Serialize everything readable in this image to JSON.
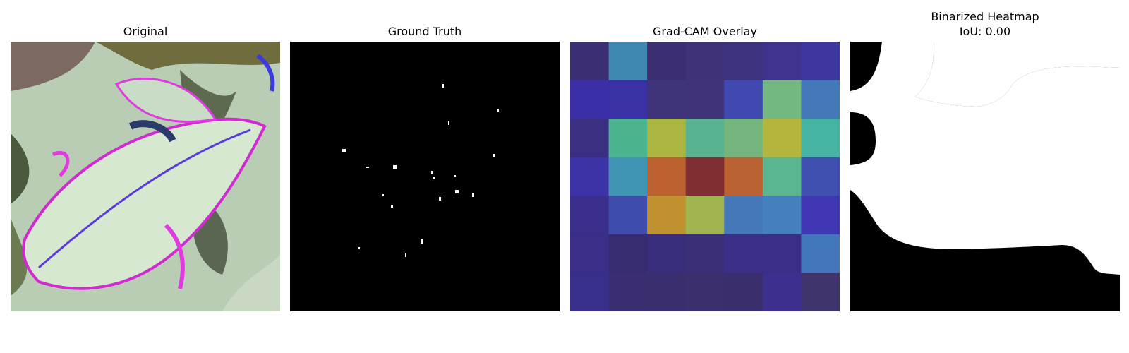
{
  "panels": [
    {
      "title": "Original"
    },
    {
      "title": "Ground Truth"
    },
    {
      "title": "Grad-CAM Overlay"
    },
    {
      "title": "Binarized Heatmap",
      "subtitle": "IoU: 0.00"
    }
  ],
  "gradcam": {
    "grid_size": 7,
    "cells": [
      [
        "#3b2e72",
        "#3f88b2",
        "#3b2f72",
        "#403278",
        "#3d3480",
        "#3f3390",
        "#3d38a0"
      ],
      [
        "#3a2fa6",
        "#3b31a6",
        "#3f3379",
        "#413379",
        "#4049b0",
        "#72b880",
        "#4479b9"
      ],
      [
        "#3a2f80",
        "#4bb38e",
        "#aab640",
        "#59b390",
        "#73b57c",
        "#b3b53c",
        "#45b5a2"
      ],
      [
        "#3d33a8",
        "#3f95b3",
        "#bb6230",
        "#7e2e30",
        "#bb6232",
        "#5ab590",
        "#4050b0"
      ],
      [
        "#392e8b",
        "#3d4cad",
        "#c0922f",
        "#a0b450",
        "#4478b8",
        "#4480bb",
        "#4038b2"
      ],
      [
        "#3a2e88",
        "#372c70",
        "#392e7c",
        "#3b2f78",
        "#3b2f88",
        "#3a2f86",
        "#4476bb"
      ],
      [
        "#382e8c",
        "#3a2d70",
        "#3b2e6e",
        "#3c2f6e",
        "#3b2e6c",
        "#3c2f90",
        "#40346c"
      ]
    ]
  }
}
